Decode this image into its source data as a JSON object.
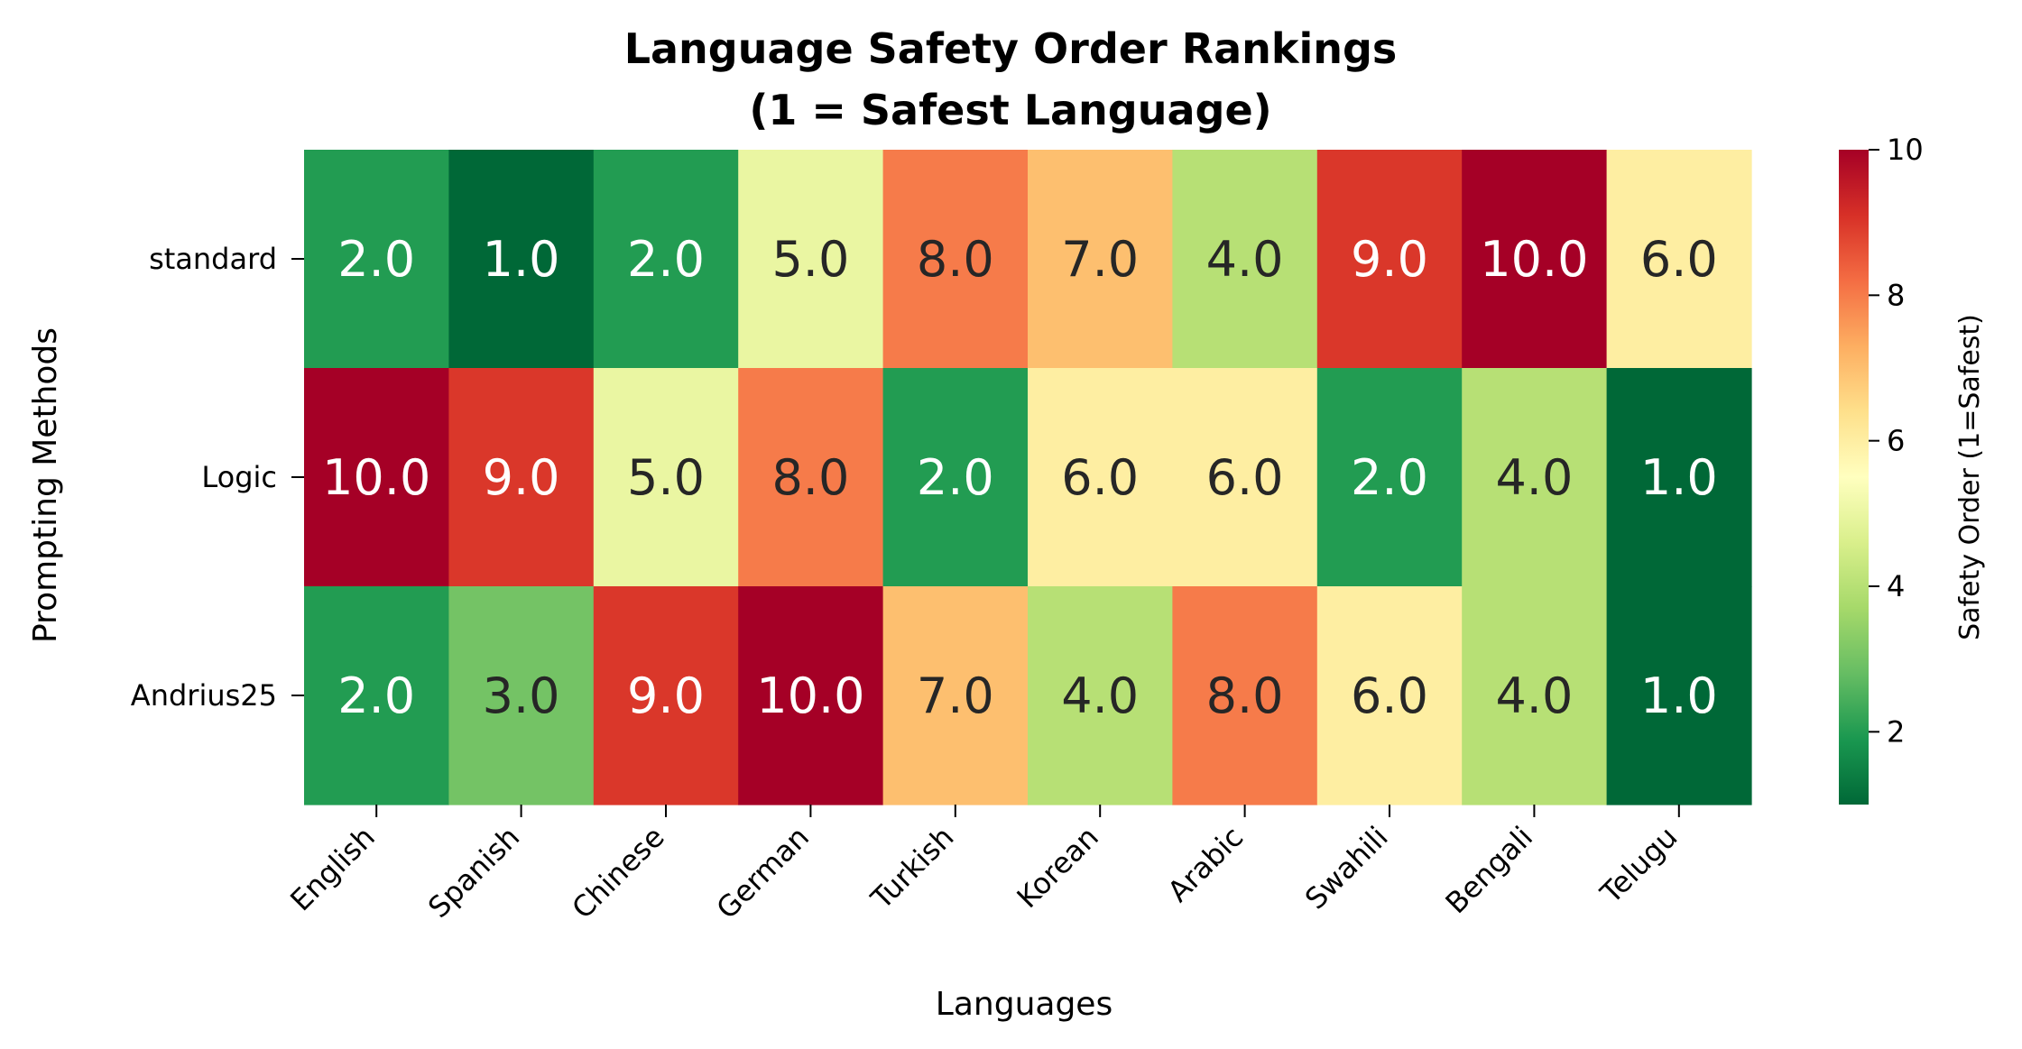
{
  "chart_data": {
    "type": "heatmap",
    "title_lines": [
      "Language Safety Order Rankings",
      "(1 = Safest Language)"
    ],
    "xlabel": "Languages",
    "ylabel": "Prompting Methods",
    "columns": [
      "English",
      "Spanish",
      "Chinese",
      "German",
      "Turkish",
      "Korean",
      "Arabic",
      "Swahili",
      "Bengali",
      "Telugu"
    ],
    "rows": [
      "standard",
      "Logic",
      "Andrius25"
    ],
    "values": [
      [
        2,
        1,
        2,
        5,
        8,
        7,
        4,
        9,
        10,
        6
      ],
      [
        10,
        9,
        5,
        8,
        2,
        6,
        6,
        2,
        4,
        1
      ],
      [
        2,
        3,
        9,
        10,
        7,
        4,
        8,
        6,
        4,
        1
      ]
    ],
    "value_format": "0.0",
    "colorbar": {
      "label": "Safety Order (1=Safest)",
      "range": [
        1,
        10
      ],
      "ticks": [
        2,
        4,
        6,
        8,
        10
      ],
      "colormap": "RdYlGn_r"
    }
  }
}
